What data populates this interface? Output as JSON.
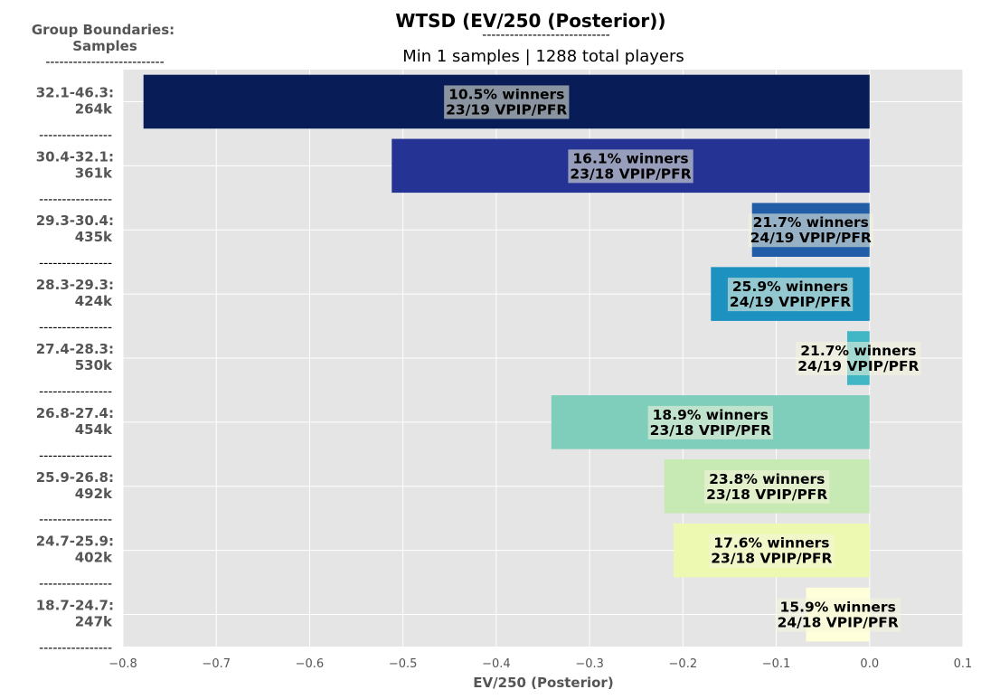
{
  "chart_data": {
    "type": "bar",
    "orientation": "horizontal",
    "title": "WTSD (EV/250 (Posterior))",
    "title_rule": "----------------------------",
    "subtitle": "Min 1 samples | 1288 total players",
    "left_header": [
      "Group Boundaries:",
      "Samples"
    ],
    "left_header_rule": "--------------------------",
    "group_rule": "----------------",
    "xlabel": "EV/250 (Posterior)",
    "xlim": [
      -0.8,
      0.1
    ],
    "xticks": [
      -0.8,
      -0.7,
      -0.6,
      -0.5,
      -0.4,
      -0.3,
      -0.2,
      -0.1,
      0.0,
      0.1
    ],
    "xtick_labels": [
      "−0.8",
      "−0.7",
      "−0.6",
      "−0.5",
      "−0.4",
      "−0.3",
      "−0.2",
      "−0.1",
      "0.0",
      "0.1"
    ],
    "grid": true,
    "categories": [
      {
        "range": "32.1-46.3:",
        "samples": "264k",
        "value": -0.778,
        "color": "#081d58",
        "label1": "10.5% winners",
        "label2": "23/19 VPIP/PFR"
      },
      {
        "range": "30.4-32.1:",
        "samples": "361k",
        "value": -0.512,
        "color": "#253494",
        "label1": "16.1% winners",
        "label2": "23/18 VPIP/PFR"
      },
      {
        "range": "29.3-30.4:",
        "samples": "435k",
        "value": -0.126,
        "color": "#225ea8",
        "label1": "21.7% winners",
        "label2": "24/19 VPIP/PFR"
      },
      {
        "range": "28.3-29.3:",
        "samples": "424k",
        "value": -0.17,
        "color": "#1d91c0",
        "label1": "25.9% winners",
        "label2": "24/19 VPIP/PFR"
      },
      {
        "range": "27.4-28.3:",
        "samples": "530k",
        "value": -0.024,
        "color": "#41b6c4",
        "label1": "21.7% winners",
        "label2": "24/19 VPIP/PFR"
      },
      {
        "range": "26.8-27.4:",
        "samples": "454k",
        "value": -0.341,
        "color": "#7fcdbb",
        "label1": "18.9% winners",
        "label2": "23/18 VPIP/PFR"
      },
      {
        "range": "25.9-26.8:",
        "samples": "492k",
        "value": -0.22,
        "color": "#c7e9b4",
        "label1": "23.8% winners",
        "label2": "23/18 VPIP/PFR"
      },
      {
        "range": "24.7-25.9:",
        "samples": "402k",
        "value": -0.21,
        "color": "#edf8b1",
        "label1": "17.6% winners",
        "label2": "23/18 VPIP/PFR"
      },
      {
        "range": "18.7-24.7:",
        "samples": "247k",
        "value": -0.068,
        "color": "#ffffd9",
        "label1": "15.9% winners",
        "label2": "24/18 VPIP/PFR"
      }
    ],
    "colors": {
      "plot_bg": "#e5e5e5",
      "grid": "#ffffff",
      "label_box": "#f5f5dc"
    }
  }
}
